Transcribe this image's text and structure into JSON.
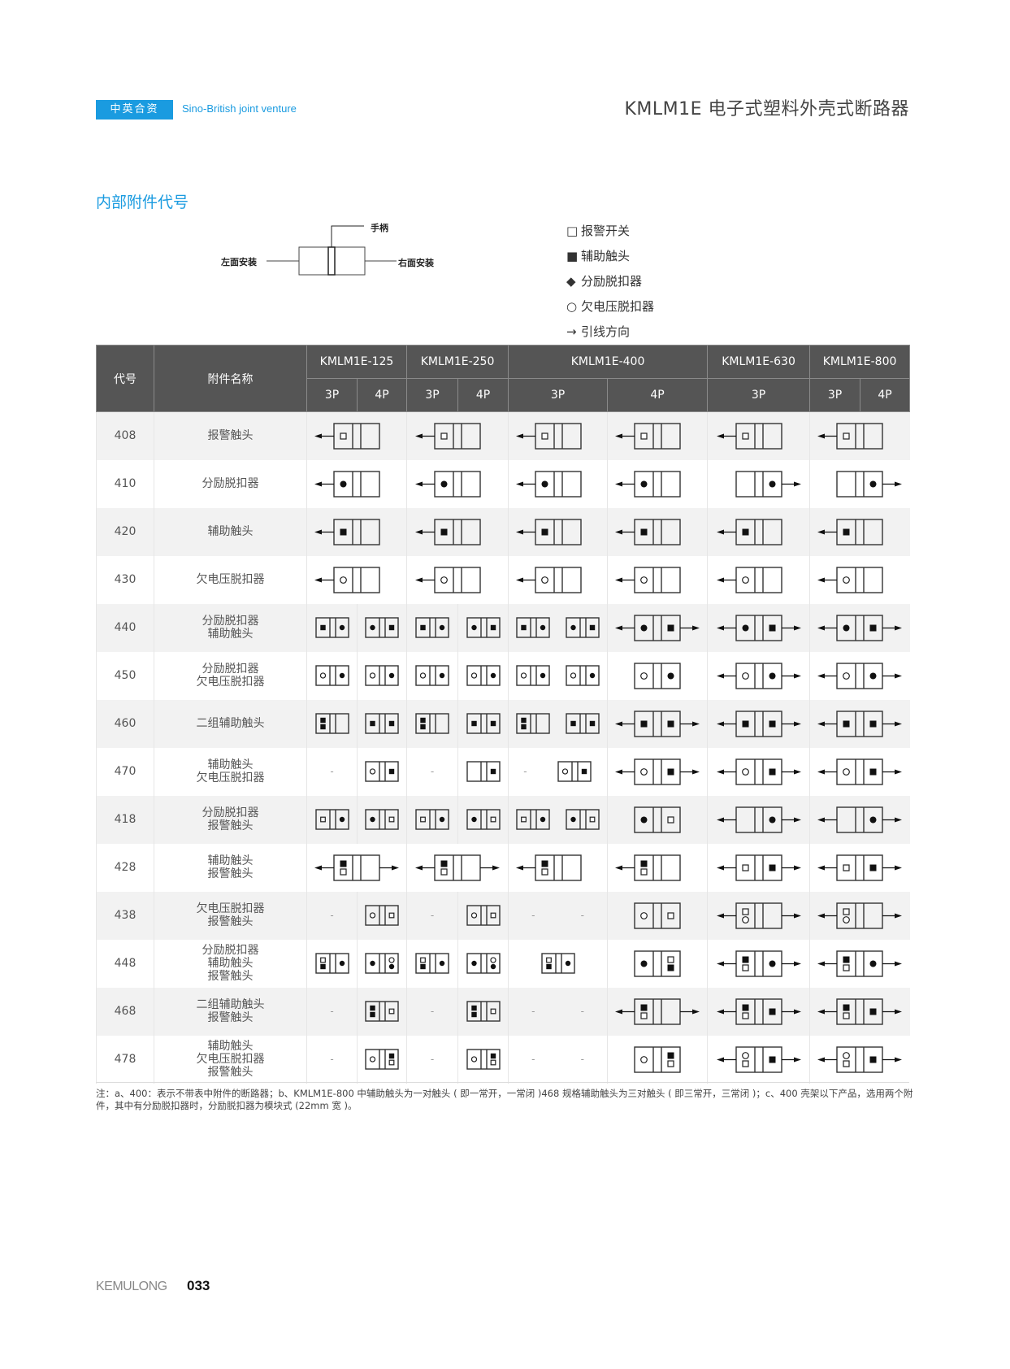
{
  "header": {
    "badge": "中英合资",
    "tagline": "Sino-British joint venture",
    "title": "KMLM1E 电子式塑料外壳式断路器",
    "accent_color": "#1a9be0"
  },
  "section_title": "内部附件代号",
  "mount_diagram": {
    "handle": "手柄",
    "left": "左面安装",
    "right": "右面安装"
  },
  "legend": [
    {
      "icon": "open-square",
      "glyph": "□",
      "label": "报警开关"
    },
    {
      "icon": "filled-square",
      "glyph": "■",
      "label": "辅助触头"
    },
    {
      "icon": "filled-diamond",
      "glyph": "◆",
      "label": "分励脱扣器"
    },
    {
      "icon": "open-circle",
      "glyph": "○",
      "label": "欠电压脱扣器"
    },
    {
      "icon": "arrow-right",
      "glyph": "→",
      "label": "引线方向"
    }
  ],
  "table": {
    "code_header": "代号",
    "name_header": "附件名称",
    "models": [
      {
        "name": "KMLM1E-125",
        "poles": [
          "3P",
          "4P"
        ]
      },
      {
        "name": "KMLM1E-250",
        "poles": [
          "3P",
          "4P"
        ]
      },
      {
        "name": "KMLM1E-400",
        "poles": [
          "3P",
          "4P"
        ]
      },
      {
        "name": "KMLM1E-630",
        "poles": [
          "3P"
        ]
      },
      {
        "name": "KMLM1E-800",
        "poles": [
          "3P",
          "4P"
        ]
      }
    ],
    "symbol_key": {
      "s": "alarm-contact-open-square",
      "S": "auxiliary-contact-filled-square",
      "D": "shunt-release-filled-dot",
      "o": "undervoltage-release-open-circle",
      "L": "lead-left",
      "R": "lead-right"
    },
    "rows": [
      {
        "code": "408",
        "name": [
          "报警触头"
        ],
        "cells": [
          {
            "span": 2,
            "d": [
              "big|s||L"
            ]
          },
          {
            "span": 2,
            "d": [
              "big|s||L"
            ]
          },
          {
            "d": [
              "big|s||L"
            ]
          },
          {
            "d": [
              "big|s||L"
            ]
          },
          {
            "d": [
              "big|s||L"
            ]
          },
          {
            "span": 2,
            "d": [
              "big|s||L"
            ]
          }
        ]
      },
      {
        "code": "410",
        "name": [
          "分励脱扣器"
        ],
        "cells": [
          {
            "span": 2,
            "d": [
              "big|D||L"
            ]
          },
          {
            "span": 2,
            "d": [
              "big|D||L"
            ]
          },
          {
            "d": [
              "big|D||L"
            ]
          },
          {
            "d": [
              "big|D||L"
            ]
          },
          {
            "d": [
              "big||D|R"
            ]
          },
          {
            "span": 2,
            "d": [
              "big||D|R"
            ]
          }
        ]
      },
      {
        "code": "420",
        "name": [
          "辅助触头"
        ],
        "cells": [
          {
            "span": 2,
            "d": [
              "big|S||L"
            ]
          },
          {
            "span": 2,
            "d": [
              "big|S||L"
            ]
          },
          {
            "d": [
              "big|S||L"
            ]
          },
          {
            "d": [
              "big|S||L"
            ]
          },
          {
            "d": [
              "big|S||L"
            ]
          },
          {
            "span": 2,
            "d": [
              "big|S||L"
            ]
          }
        ]
      },
      {
        "code": "430",
        "name": [
          "欠电压脱扣器"
        ],
        "cells": [
          {
            "span": 2,
            "d": [
              "big|o||L"
            ]
          },
          {
            "span": 2,
            "d": [
              "big|o||L"
            ]
          },
          {
            "d": [
              "big|o||L"
            ]
          },
          {
            "d": [
              "big|o||L"
            ]
          },
          {
            "d": [
              "big|o||L"
            ]
          },
          {
            "span": 2,
            "d": [
              "big|o||L"
            ]
          }
        ]
      },
      {
        "code": "440",
        "name": [
          "分励脱扣器",
          "辅助触头"
        ],
        "cells": [
          {
            "d": [
              "sm|S|D|"
            ]
          },
          {
            "d": [
              "sm|D|S|"
            ]
          },
          {
            "d": [
              "sm|S|D|"
            ]
          },
          {
            "d": [
              "sm|D|S|"
            ]
          },
          {
            "d": [
              "sm|S|D|",
              "sm|D|S|"
            ]
          },
          {
            "d": [
              "big|D|S|LR"
            ]
          },
          {
            "d": [
              "big|D|S|LR"
            ]
          },
          {
            "span": 2,
            "d": [
              "big|D|S|LR"
            ]
          }
        ]
      },
      {
        "code": "450",
        "name": [
          "分励脱扣器",
          "欠电压脱扣器"
        ],
        "cells": [
          {
            "d": [
              "sm|o|D|"
            ]
          },
          {
            "d": [
              "sm|o|D|"
            ]
          },
          {
            "d": [
              "sm|o|D|"
            ]
          },
          {
            "d": [
              "sm|o|D|"
            ]
          },
          {
            "d": [
              "sm|o|D|",
              "sm|o|D|"
            ]
          },
          {
            "d": [
              "big|o|D|"
            ]
          },
          {
            "d": [
              "big|o|D|LR"
            ]
          },
          {
            "span": 2,
            "d": [
              "big|o|D|LR"
            ]
          }
        ]
      },
      {
        "code": "460",
        "name": [
          "二组辅助触头"
        ],
        "cells": [
          {
            "d": [
              "sm|SS||"
            ]
          },
          {
            "d": [
              "sm|S|S|"
            ]
          },
          {
            "d": [
              "sm|SS||"
            ]
          },
          {
            "d": [
              "sm|S|S|"
            ]
          },
          {
            "d": [
              "sm|SS||",
              "sm|S|S|"
            ]
          },
          {
            "d": [
              "big|S|S|LR"
            ]
          },
          {
            "d": [
              "big|S|S|LR"
            ]
          },
          {
            "span": 2,
            "d": [
              "big|S|S|LR"
            ]
          }
        ]
      },
      {
        "code": "470",
        "name": [
          "辅助触头",
          "欠电压脱扣器"
        ],
        "cells": [
          {
            "d": [
              "-"
            ]
          },
          {
            "d": [
              "sm|o|S|"
            ]
          },
          {
            "d": [
              "-"
            ]
          },
          {
            "d": [
              "sm||S|"
            ]
          },
          {
            "d": [
              "-",
              "sm|o|S|"
            ]
          },
          {
            "d": [
              "big|o|S|LR"
            ]
          },
          {
            "d": [
              "big|o|S|LR"
            ]
          },
          {
            "span": 2,
            "d": [
              "big|o|S|LR"
            ]
          }
        ]
      },
      {
        "code": "418",
        "name": [
          "分励脱扣器",
          "报警触头"
        ],
        "cells": [
          {
            "d": [
              "sm|s|D|"
            ]
          },
          {
            "d": [
              "sm|D|s|"
            ]
          },
          {
            "d": [
              "sm|s|D|"
            ]
          },
          {
            "d": [
              "sm|D|s|"
            ]
          },
          {
            "d": [
              "sm|s|D|",
              "sm|D|s|"
            ]
          },
          {
            "d": [
              "big|D|s|"
            ]
          },
          {
            "d": [
              "big||D|LR"
            ]
          },
          {
            "span": 2,
            "d": [
              "big||D|LR"
            ]
          }
        ]
      },
      {
        "code": "428",
        "name": [
          "辅助触头",
          "报警触头"
        ],
        "cells": [
          {
            "span": 2,
            "d": [
              "big|Ss||LR"
            ]
          },
          {
            "span": 2,
            "d": [
              "big|Ss||LR"
            ]
          },
          {
            "d": [
              "big|Ss||L"
            ]
          },
          {
            "d": [
              "big|Ss||L"
            ]
          },
          {
            "d": [
              "big|s|S|LR"
            ]
          },
          {
            "span": 2,
            "d": [
              "big|s|S|LR"
            ]
          }
        ]
      },
      {
        "code": "438",
        "name": [
          "欠电压脱扣器",
          "报警触头"
        ],
        "cells": [
          {
            "d": [
              "-"
            ]
          },
          {
            "d": [
              "sm|o|s|"
            ]
          },
          {
            "d": [
              "-"
            ]
          },
          {
            "d": [
              "sm|o|s|"
            ]
          },
          {
            "d": [
              "-",
              "-"
            ]
          },
          {
            "d": [
              "big|o|s|"
            ]
          },
          {
            "d": [
              "big|so||LR"
            ]
          },
          {
            "span": 2,
            "d": [
              "big|so||LR"
            ]
          }
        ]
      },
      {
        "code": "448",
        "name": [
          "分励脱扣器",
          "辅助触头",
          "报警触头"
        ],
        "cells": [
          {
            "d": [
              "sm|sS|D|"
            ]
          },
          {
            "d": [
              "sm|D|oD|"
            ]
          },
          {
            "d": [
              "sm|sS|D|"
            ]
          },
          {
            "d": [
              "sm|D|oD|"
            ]
          },
          {
            "d": [
              "sm|sS|D|"
            ]
          },
          {
            "d": [
              "big|D|sS|"
            ]
          },
          {
            "d": [
              "big|Ss|D|LR"
            ]
          },
          {
            "span": 2,
            "d": [
              "big|Ss|D|LR"
            ]
          }
        ]
      },
      {
        "code": "468",
        "name": [
          "二组辅助触头",
          "报警触头"
        ],
        "cells": [
          {
            "d": [
              "-"
            ]
          },
          {
            "d": [
              "sm|SS|s|"
            ]
          },
          {
            "d": [
              "-"
            ]
          },
          {
            "d": [
              "sm|SS|s|"
            ]
          },
          {
            "d": [
              "-",
              "-"
            ]
          },
          {
            "d": [
              "big|Ss||LR"
            ]
          },
          {
            "d": [
              "big|Ss|S|LR"
            ]
          },
          {
            "span": 2,
            "d": [
              "big|Ss|S|LR"
            ]
          }
        ]
      },
      {
        "code": "478",
        "name": [
          "辅助触头",
          "欠电压脱扣器",
          "报警触头"
        ],
        "cells": [
          {
            "d": [
              "-"
            ]
          },
          {
            "d": [
              "sm|o|Ss|"
            ]
          },
          {
            "d": [
              "-"
            ]
          },
          {
            "d": [
              "sm|o|Ss|"
            ]
          },
          {
            "d": [
              "-",
              "-"
            ]
          },
          {
            "d": [
              "big|o|Ss|"
            ]
          },
          {
            "d": [
              "big|os|S|LR"
            ]
          },
          {
            "span": 2,
            "d": [
              "big|os|S|LR"
            ]
          }
        ]
      }
    ]
  },
  "note": "注：a、400：表示不带表中附件的断路器；b、KMLM1E-800 中辅助触头为一对触头 ( 即一常开，一常闭 )468 规格辅助触头为三对触头 ( 即三常开，三常闭 )；c、400 壳架以下产品，选用两个附件，其中有分励脱扣器时，分励脱扣器为模块式 (22mm 宽 )。",
  "footer": {
    "brand": "KEMULONG",
    "page": "033"
  }
}
